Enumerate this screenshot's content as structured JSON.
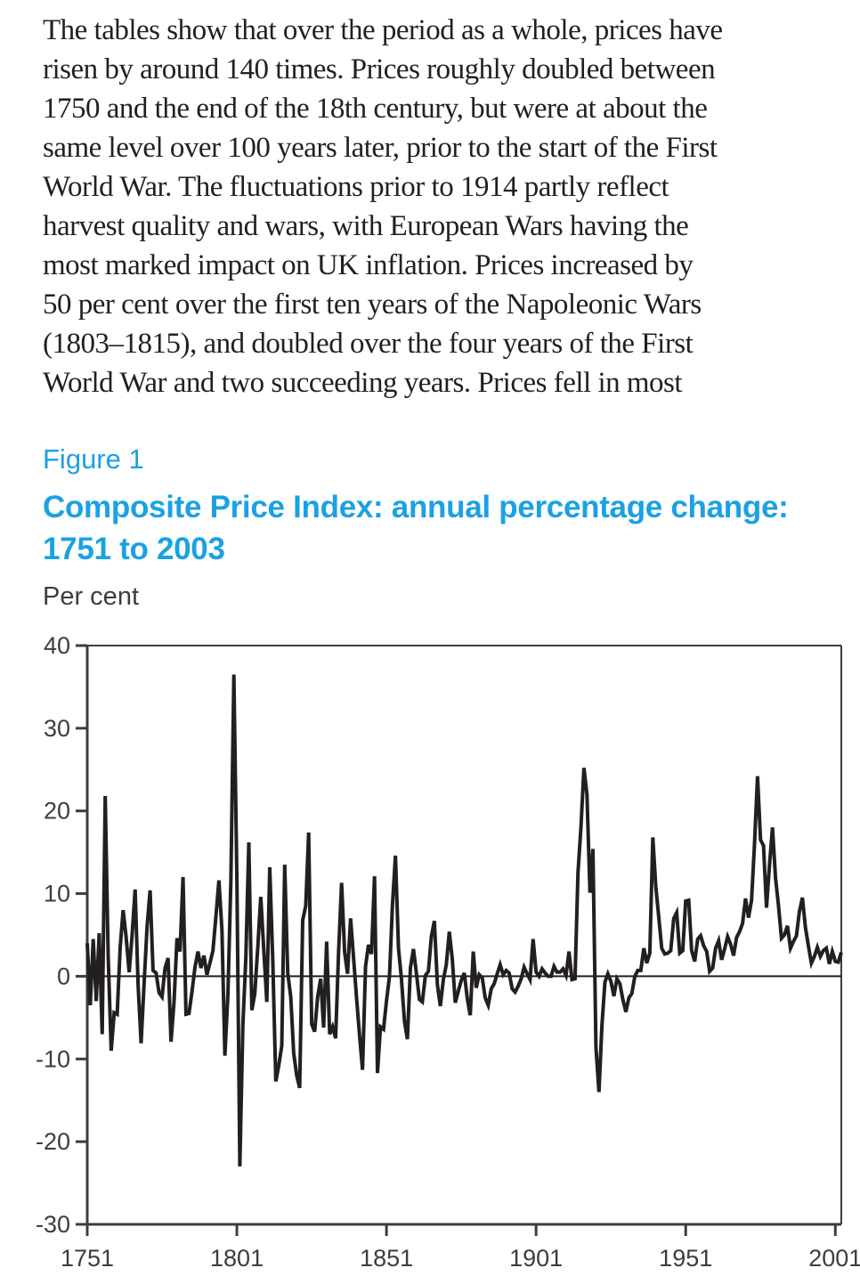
{
  "paragraph": {
    "lines": [
      "The tables show that over the period as a whole, prices have",
      "risen by around 140 times. Prices roughly doubled between",
      "1750 and the end of the 18th century, but were at about the",
      "same level over 100 years later, prior to the start of the First",
      "World War. The fluctuations prior to 1914 partly reflect",
      "harvest quality and wars, with European Wars having the",
      "most marked impact on UK inflation. Prices increased by",
      "50 per cent over the first ten years of the Napoleonic Wars",
      "(1803–1815), and doubled over the four years of the First",
      "World War and two succeeding years. Prices fell in most"
    ]
  },
  "figure": {
    "label": "Figure 1",
    "title_line1": "Composite Price Index: annual percentage change:",
    "title_line2": "1751 to 2003",
    "unit_label": "Per cent",
    "accent_color": "#1ba1e3"
  },
  "chart_data": {
    "type": "line",
    "title": "Composite Price Index: annual percentage change: 1751 to 2003",
    "xlabel": "",
    "ylabel": "Per cent",
    "x_start": 1751,
    "x_end": 2003,
    "x_step": 1,
    "ylim": [
      -30,
      40
    ],
    "y_ticks": [
      40,
      30,
      20,
      10,
      0,
      -10,
      -20,
      -30
    ],
    "x_ticks": [
      1751,
      1801,
      1851,
      1901,
      1951,
      2001
    ],
    "grid": false,
    "legend": "none",
    "zero_line": true,
    "line_color": "#231f20",
    "axis_color": "#3d3d3d",
    "label_color": "#3d3d3d",
    "series": [
      {
        "name": "Annual percentage change in Composite Price Index",
        "values": [
          4.0,
          -3.5,
          4.5,
          -3.0,
          5.2,
          -7.0,
          21.8,
          2.5,
          -9.0,
          -4.4,
          -4.6,
          3.5,
          8.0,
          4.7,
          0.5,
          5.0,
          10.5,
          -1.0,
          -8.1,
          -0.8,
          6.0,
          10.4,
          0.7,
          0.4,
          -2.0,
          -2.5,
          1.0,
          2.2,
          -7.9,
          -3.1,
          4.6,
          3.0,
          12.0,
          -4.6,
          -4.5,
          -1.9,
          1.1,
          3.0,
          1.0,
          2.5,
          0.2,
          1.6,
          3.1,
          7.2,
          11.6,
          5.6,
          -9.6,
          -2.2,
          11.4,
          36.5,
          11.7,
          -23.0,
          -5.9,
          2.1,
          16.2,
          -4.1,
          -2.1,
          3.6,
          9.6,
          3.2,
          -3.1,
          13.2,
          1.9,
          -12.7,
          -10.8,
          -8.4,
          13.5,
          0.4,
          -2.5,
          -9.3,
          -12.0,
          -13.5,
          6.8,
          8.5,
          17.4,
          -5.8,
          -6.7,
          -2.5,
          -0.3,
          -6.2,
          4.2,
          -7.0,
          -6.1,
          -7.5,
          2.9,
          11.3,
          2.9,
          0.3,
          7.0,
          2.3,
          -2.6,
          -7.2,
          -11.3,
          1.2,
          3.8,
          2.7,
          12.1,
          -11.7,
          -6.1,
          -6.4,
          -3.0,
          0.0,
          8.6,
          14.6,
          3.4,
          -0.3,
          -5.4,
          -7.6,
          1.0,
          3.3,
          0.4,
          -2.8,
          -3.1,
          0.1,
          0.6,
          4.8,
          6.7,
          -1.0,
          -3.6,
          -0.4,
          1.4,
          5.4,
          2.0,
          -3.2,
          -1.8,
          -0.5,
          0.4,
          -2.7,
          -4.7,
          3.0,
          -1.4,
          0.2,
          -0.2,
          -2.6,
          -3.5,
          -1.5,
          -0.9,
          0.3,
          1.4,
          0.2,
          0.7,
          0.4,
          -1.5,
          -1.9,
          -1.2,
          -0.3,
          1.1,
          0.3,
          -0.4,
          4.5,
          0.5,
          0.0,
          0.9,
          0.4,
          0.0,
          0.0,
          1.2,
          0.5,
          0.5,
          0.9,
          0.1,
          3.0,
          -0.4,
          -0.3,
          12.5,
          18.1,
          25.2,
          22.0,
          10.1,
          15.4,
          -8.6,
          -14.0,
          -6.0,
          -0.7,
          0.3,
          -0.6,
          -2.4,
          -0.3,
          -0.9,
          -2.8,
          -4.3,
          -2.6,
          -2.1,
          0.0,
          0.7,
          0.7,
          3.4,
          1.6,
          2.8,
          16.8,
          10.9,
          7.1,
          3.4,
          2.7,
          2.8,
          3.1,
          7.0,
          7.7,
          2.8,
          3.1,
          9.1,
          9.2,
          3.1,
          1.8,
          4.5,
          4.9,
          3.7,
          3.0,
          0.6,
          1.0,
          3.4,
          4.3,
          2.0,
          3.3,
          4.8,
          3.9,
          2.5,
          4.7,
          5.4,
          6.4,
          9.4,
          7.1,
          9.2,
          16.0,
          24.2,
          16.5,
          15.8,
          8.3,
          13.4,
          18.0,
          11.9,
          8.6,
          4.6,
          5.0,
          6.1,
          3.4,
          4.2,
          4.9,
          7.8,
          9.5,
          5.9,
          3.7,
          1.6,
          2.4,
          3.5,
          2.4,
          3.1,
          3.4,
          1.5,
          3.0,
          1.8,
          1.7,
          2.9
        ]
      }
    ]
  }
}
